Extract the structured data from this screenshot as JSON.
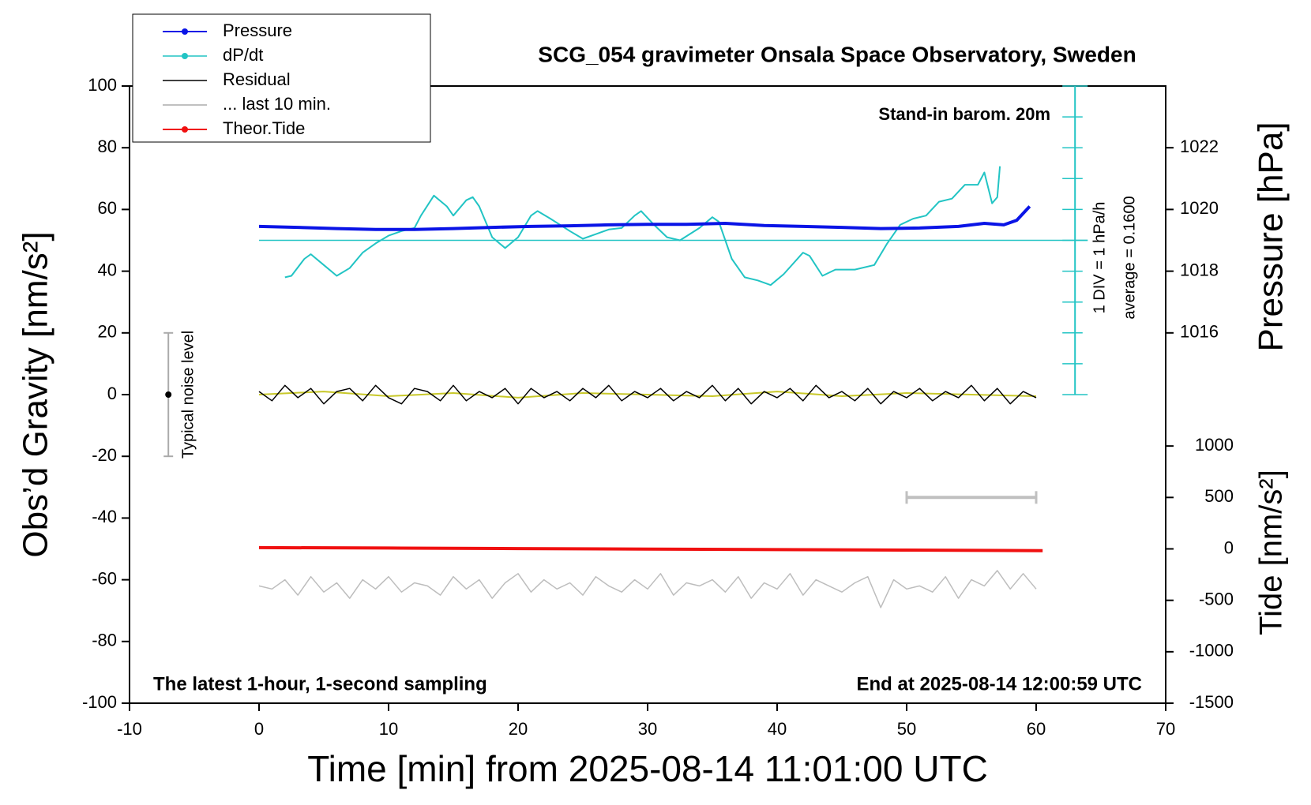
{
  "chart_data": {
    "type": "line",
    "title": "SCG_054 gravimeter Onsala Space Observatory, Sweden",
    "x_label": "Time [min] from 2025-08-14 11:01:00 UTC",
    "y_label": "Obs’d Gravity [nm/s²]",
    "y2_label": "Pressure [hPa]",
    "y3_label": "Tide [nm/s²]",
    "xlim": [
      -10,
      70
    ],
    "xticks": [
      -10,
      0,
      10,
      20,
      30,
      40,
      50,
      60,
      70
    ],
    "ylim": [
      -100,
      100
    ],
    "yticks": [
      -100,
      -80,
      -60,
      -40,
      -20,
      0,
      20,
      40,
      60,
      80,
      100
    ],
    "y2lim": [
      1014,
      1024
    ],
    "y2ticks": [
      1016,
      1018,
      1020,
      1022
    ],
    "y3lim": [
      -1500,
      1000
    ],
    "y3ticks": [
      -1500,
      -1000,
      -500,
      0,
      500,
      1000
    ],
    "annotations": [
      "Stand-in barom. 20m",
      "The latest 1-hour, 1-second sampling",
      "End at 2025-08-14 12:00:59 UTC"
    ],
    "dpdt_axis": {
      "x": 63,
      "ticks": [
        0,
        10,
        20,
        30,
        40,
        50,
        60,
        70,
        80,
        90,
        100
      ],
      "average_y": 50,
      "color": "#22c4c4",
      "labels": [
        "1 DIV = 1 hPa/h",
        "average = 0.1600"
      ]
    },
    "noise_bar": {
      "x": -7,
      "value": 0,
      "error": 20,
      "label": "Typical noise level"
    },
    "series": [
      {
        "name": "Pressure",
        "color": "#0a14e6",
        "axis": "y2",
        "marker": true,
        "width": 4,
        "x": [
          0,
          3,
          6,
          9,
          12,
          15,
          18,
          21,
          24,
          27,
          30,
          33,
          36,
          39,
          42,
          45,
          48,
          51,
          54,
          56,
          57.5,
          58.5,
          59.5
        ],
        "values": [
          1019.45,
          1019.42,
          1019.38,
          1019.35,
          1019.35,
          1019.38,
          1019.42,
          1019.45,
          1019.47,
          1019.5,
          1019.52,
          1019.52,
          1019.55,
          1019.48,
          1019.45,
          1019.42,
          1019.38,
          1019.4,
          1019.45,
          1019.55,
          1019.5,
          1019.65,
          1020.1
        ]
      },
      {
        "name": "dP/dt",
        "color": "#22c4c4",
        "axis": "y",
        "marker": true,
        "width": 2,
        "x": [
          2,
          2.5,
          3.5,
          4,
          5,
          6,
          7,
          8,
          9,
          10,
          11,
          12,
          12.5,
          13.5,
          14.5,
          15,
          16,
          16.5,
          17,
          18,
          19,
          20,
          21,
          21.5,
          22.5,
          24,
          25,
          26,
          27,
          28,
          29,
          29.5,
          30.5,
          31.5,
          32.5,
          34,
          35,
          35.5,
          36.5,
          37.5,
          38.5,
          39.5,
          40.5,
          42,
          42.5,
          43.5,
          44.5,
          46,
          47.5,
          48.5,
          49.5,
          50.5,
          51.5,
          52.5,
          53.5,
          54.5,
          55.5,
          56,
          56.6,
          57,
          57.2
        ],
        "values": [
          38,
          38.5,
          44,
          45.5,
          42,
          38.5,
          41,
          46,
          49,
          51.5,
          53,
          54,
          58,
          64.5,
          61,
          58,
          63,
          64,
          61,
          51,
          47.5,
          51,
          58,
          59.5,
          57,
          53,
          50.5,
          52,
          53.5,
          54,
          58,
          59.5,
          55,
          51,
          50,
          54,
          57.5,
          56,
          44,
          38,
          37,
          35.5,
          39,
          46,
          45,
          38.5,
          40.5,
          40.5,
          42,
          49,
          55,
          57,
          58,
          62.5,
          63.5,
          68,
          68,
          72,
          62,
          64,
          74
        ]
      },
      {
        "name": "Residual",
        "color": "#000000",
        "axis": "y",
        "marker": false,
        "width": 1.5,
        "x": [
          0,
          1,
          2,
          3,
          4,
          5,
          6,
          7,
          8,
          9,
          10,
          11,
          12,
          13,
          14,
          15,
          16,
          17,
          18,
          19,
          20,
          21,
          22,
          23,
          24,
          25,
          26,
          27,
          28,
          29,
          30,
          31,
          32,
          33,
          34,
          35,
          36,
          37,
          38,
          39,
          40,
          41,
          42,
          43,
          44,
          45,
          46,
          47,
          48,
          49,
          50,
          51,
          52,
          53,
          54,
          55,
          56,
          57,
          58,
          59,
          60
        ],
        "values": [
          1,
          -2,
          3,
          -1,
          2,
          -3,
          1,
          2,
          -2,
          3,
          -1,
          -3,
          2,
          1,
          -2,
          3,
          -2,
          1,
          -1,
          2,
          -3,
          2,
          -1,
          1,
          -2,
          2,
          -1,
          3,
          -2,
          1,
          -1,
          2,
          -2,
          1,
          -1,
          3,
          -2,
          2,
          -3,
          1,
          -1,
          2,
          -2,
          3,
          -1,
          1,
          -2,
          2,
          -3,
          1,
          -1,
          2,
          -2,
          1,
          -1,
          3,
          -2,
          2,
          -3,
          1,
          -1
        ]
      },
      {
        "name": "... last 10 min.",
        "color": "#c0c0c0",
        "axis": "y3",
        "marker": false,
        "width": 4,
        "caps": true,
        "x": [
          50,
          60
        ],
        "values": [
          500,
          500
        ]
      },
      {
        "name": "Theor.Tide",
        "color": "#f01010",
        "axis": "y3",
        "marker": true,
        "width": 4,
        "x": [
          0,
          10,
          20,
          30,
          40,
          50,
          60.5
        ],
        "values": [
          12,
          8,
          3,
          -2,
          -7,
          -12,
          -17
        ]
      },
      {
        "color": "#c8c82a",
        "axis": "y",
        "width": 2,
        "x": [
          0,
          5,
          10,
          15,
          20,
          25,
          30,
          35,
          40,
          45,
          50,
          55,
          60
        ],
        "values": [
          0,
          1,
          -0.5,
          0.5,
          -1,
          0.5,
          0,
          -0.5,
          1,
          -0.5,
          0.5,
          0,
          -0.5
        ]
      },
      {
        "color": "#bdbdbd",
        "axis": "y",
        "width": 1.5,
        "x": [
          0,
          1,
          2,
          3,
          4,
          5,
          6,
          7,
          8,
          9,
          10,
          11,
          12,
          13,
          14,
          15,
          16,
          17,
          18,
          19,
          20,
          21,
          22,
          23,
          24,
          25,
          26,
          27,
          28,
          29,
          30,
          31,
          32,
          33,
          34,
          35,
          36,
          37,
          38,
          39,
          40,
          41,
          42,
          43,
          44,
          45,
          46,
          47,
          48,
          49,
          50,
          51,
          52,
          53,
          54,
          55,
          56,
          57,
          58,
          59,
          60
        ],
        "values": [
          -62,
          -63,
          -60,
          -65,
          -59,
          -64,
          -61,
          -66,
          -60,
          -63,
          -59,
          -64,
          -61,
          -62,
          -65,
          -59,
          -63,
          -60,
          -66,
          -61,
          -58,
          -64,
          -60,
          -63,
          -61,
          -65,
          -59,
          -62,
          -64,
          -60,
          -63,
          -58,
          -65,
          -61,
          -62,
          -60,
          -64,
          -59,
          -66,
          -61,
          -63,
          -58,
          -65,
          -60,
          -62,
          -64,
          -61,
          -59,
          -69,
          -60,
          -63,
          -62,
          -64,
          -59,
          -66,
          -60,
          -62,
          -57,
          -63,
          -58,
          -63
        ]
      }
    ]
  }
}
